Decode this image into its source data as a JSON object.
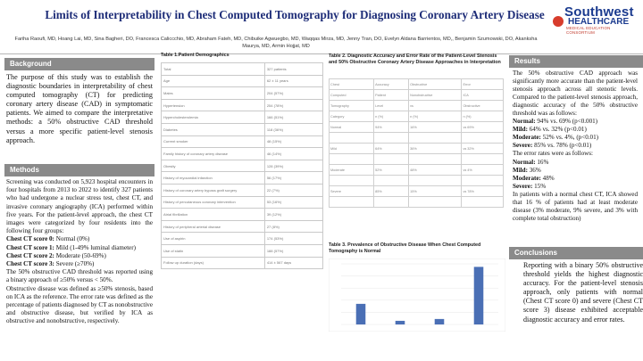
{
  "header": {
    "title": "Limits of Interpretability in Chest Computed Tomography for Diagnosing Coronary Artery Disease",
    "authors_line1": "Fariha Raoufi, MD, Hoang Lai, MD, Sina Bagheri, DO, Francesca Caliccchio, MD, Abraham Fateh, MD, Chibuike Agwuegbo, MD, Waqqas Mirza, MD, Jenny Tran, DO, Evelyn Aldana Barrientos, MD,, Benjamin Szumowski, DO, Akanksha",
    "authors_line2": "Maurya, MD, Armin Hojjat, MD"
  },
  "logo": {
    "line1": "Southwest",
    "line2": "HEALTHCARE",
    "line3": "MEDICAL EDUCATION CONSORTIUM"
  },
  "background": {
    "heading": "Background",
    "text": "The purpose of this study was to establish the diagnostic boundaries in interpretability of chest computed tomography (CT) for predicting coronary artery disease (CAD) in symptomatic patients. We aimed to compare the interpretative methods: a 50% obstructive CAD threshold versus a more specific patient-level stenosis approach."
  },
  "methods": {
    "heading": "Methods",
    "para1": "Screening was conducted on 5,923 hospital encounters in four hospitals from 2013 to 2022 to identify 327 patients who had undergone a nuclear stress test, chest CT, and invasive coronary angiography (ICA) performed within five years. For the patient-level approach, the chest CT images were categorized by four residents into the following four groups:",
    "scores": [
      {
        "label": "Chest CT score 0:",
        "value": " Normal (0%)"
      },
      {
        "label": "Chest CT score 1:",
        "value": " Mild (1-49% luminal diameter)"
      },
      {
        "label": "Chest CT score 2:",
        "value": " Moderate (50-69%)"
      },
      {
        "label": "Chest CT score 3:",
        "value": " Severe (≥70%)"
      }
    ],
    "para2": "The 50% obstructive CAD threshold was reported using a binary approach of ≥50% versus < 50%.",
    "para3": "Obstructive disease was defined as ≥50% stenosis, based on ICA as the reference. The error rate was defined as the percentage of patients diagnosed by CT as nonobstructive and obstructive disease, but verified by ICA as obstructive and nonobstructive, respectively."
  },
  "table1": {
    "title": "Table 1.Patient Demographics",
    "rows": [
      [
        "Total",
        "327 patients"
      ],
      [
        "Age",
        "62 ± 11 years"
      ],
      [
        "Males",
        "204 (57%)"
      ],
      [
        "Hypertension",
        "254 (78%)"
      ],
      [
        "Hypercholesterolemia",
        "166 (51%)"
      ],
      [
        "Diabetes",
        "118 (36%)"
      ],
      [
        "Current smoker",
        "48 (15%)"
      ],
      [
        "Family history of coronary artery disease",
        "46 (14%)"
      ],
      [
        "Obesity",
        "128 (39%)"
      ],
      [
        "History of myocardial infarction",
        "56 (17%)"
      ],
      [
        "History of coronary artery bypass graft surgery",
        "22 (7%)"
      ],
      [
        "History of percutaneous coronary intervention",
        "53 (16%)"
      ],
      [
        "Atrial fibrillation",
        "39 (12%)"
      ],
      [
        "History of peripheral arterial disease",
        "27 (8%)"
      ],
      [
        "Use of aspirin",
        "174 (53%)"
      ],
      [
        "Use of statin",
        "188 (57%)"
      ],
      [
        "Follow up duration (days)",
        "414 ± 567 days"
      ]
    ]
  },
  "table2": {
    "title": "Table 2. Diagnostic Accuracy and Error Rate of the Patient-Level Stenosis and 50% Obstructive Coronary Artery Disease Approaches in Interpretation",
    "rows": [
      [
        "Chest",
        "Accuracy",
        "Obstructive",
        "Error"
      ],
      [
        "Computed",
        "Patient",
        "Nonobstructive",
        "ICA"
      ],
      [
        "Tomography",
        "Level",
        "vs",
        "Obstructive"
      ],
      [
        "Category",
        "n (%)",
        "n (%)",
        "n (%)"
      ],
      [
        "Normal",
        "94%",
        "16%",
        "vs 69%"
      ],
      [
        "",
        "",
        "",
        ""
      ],
      [
        "Mild",
        "64%",
        "36%",
        "vs 32%"
      ],
      [
        "",
        "",
        "",
        ""
      ],
      [
        "Moderate",
        "52%",
        "48%",
        "vs 4%"
      ],
      [
        "",
        "",
        "",
        ""
      ],
      [
        "Severe",
        "85%",
        "15%",
        "vs 78%"
      ],
      [
        "",
        "",
        "",
        ""
      ]
    ]
  },
  "chart_data": {
    "type": "bar",
    "title": "Table 3. Prevalence of Obstructive Disease When Chest Computed Tomography is Normal",
    "categories": [
      "",
      "",
      "",
      ""
    ],
    "values": [
      34,
      6,
      9,
      95
    ],
    "ylim": [
      0,
      100
    ],
    "colors": [
      "#4a6fb5",
      "#4a6fb5",
      "#4a6fb5",
      "#4a6fb5"
    ]
  },
  "results": {
    "heading": "Results",
    "intro": "The 50% obstructive CAD approach was significantly more accurate than the patient-level stenosis approach across all stenotic levels. Compared to the patient-level stenosis approach, diagnostic accuracy of the 50% obstructive threshold was as follows:",
    "accuracy": [
      {
        "label": "Normal:",
        "value": " 94% vs. 69% (p<0.001)"
      },
      {
        "label": "Mild:",
        "value": " 64% vs. 32% (p<0.01)"
      },
      {
        "label": "Moderate:",
        "value": " 52% vs. 4%, (p<0.01)"
      },
      {
        "label": "Severe:",
        "value": " 85% vs. 78% (p<0.01)"
      }
    ],
    "error_intro": "The error rates were as follows:",
    "errors": [
      {
        "label": "Normal:",
        "value": " 16%"
      },
      {
        "label": "Mild:",
        "value": " 36%"
      },
      {
        "label": "Moderate:",
        "value": " 48%"
      },
      {
        "label": "Severe:",
        "value": " 15%"
      }
    ],
    "closing": "In patients with a normal chest CT, ICA showed that 16 % of patients had at least moderate disease (3% moderate, 9% severe, and 3% with complete total obstruction)"
  },
  "conclusions": {
    "heading": "Conclusions",
    "text": "Reporting with a binary 50% obstructive threshold yields the highest diagnostic accuracy. For the patient-level stenosis approach, only patients with normal (Chest CT score 0) and severe (Chest CT score 3) disease exhibited acceptable diagnostic accuracy and error rates."
  }
}
